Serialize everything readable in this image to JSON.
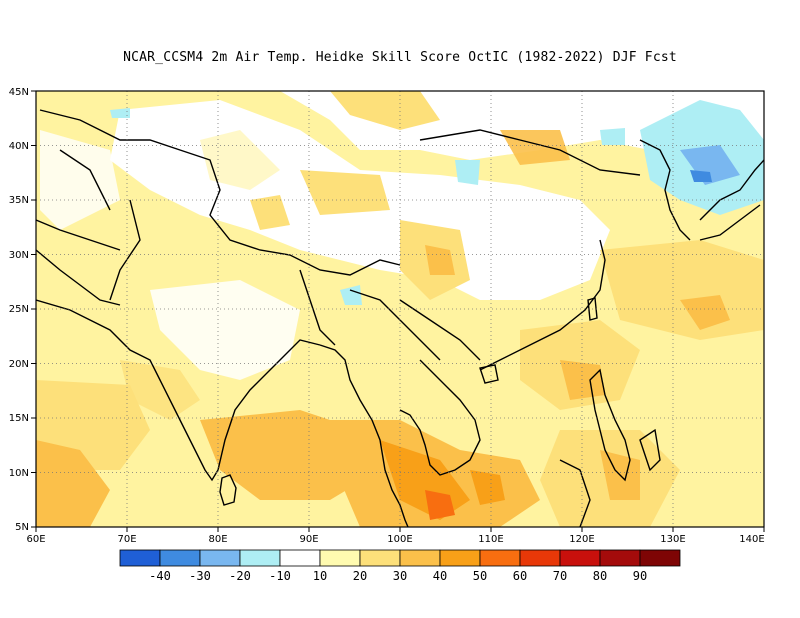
{
  "title": "NCAR_CCSM4  2m Air Temp. Heidke Skill Score OctIC (1982-2022) DJF Fcst",
  "map": {
    "lon_range": [
      60,
      140
    ],
    "lat_range": [
      5,
      45
    ],
    "grid": "dotted",
    "lat_labels": [
      "5N",
      "10N",
      "15N",
      "20N",
      "25N",
      "30N",
      "35N",
      "40N",
      "45N"
    ],
    "lon_labels": [
      "60E",
      "70E",
      "80E",
      "90E",
      "100E",
      "110E",
      "120E",
      "130E",
      "140E"
    ]
  },
  "colorbar": {
    "colors": [
      "#1f5fd6",
      "#3f8be0",
      "#79b7f0",
      "#aeeef4",
      "#ffffff",
      "#fffbb0",
      "#fde07a",
      "#fbc04a",
      "#f8a018",
      "#f86e10",
      "#e83808",
      "#c8100c",
      "#a40b0b",
      "#7e0505"
    ],
    "labels": [
      "-40",
      "-30",
      "-20",
      "-10",
      "10",
      "20",
      "30",
      "40",
      "50",
      "60",
      "70",
      "80",
      "90"
    ]
  }
}
